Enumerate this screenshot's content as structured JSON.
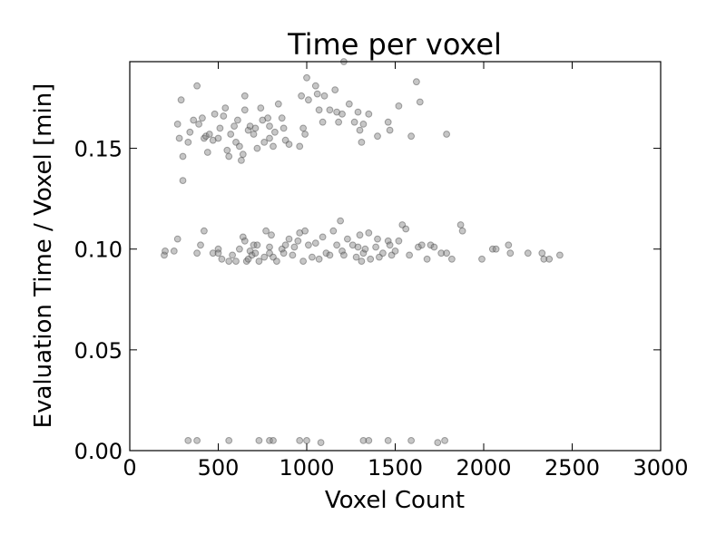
{
  "chart_data": {
    "type": "scatter",
    "title": "Time per voxel",
    "xlabel": "Voxel Count",
    "ylabel": "Evaluation Time / Voxel [min]",
    "xlim": [
      0,
      3000
    ],
    "ylim": [
      0,
      0.193
    ],
    "xticks": [
      0,
      500,
      1000,
      1500,
      2000,
      2500,
      3000
    ],
    "xtick_labels": [
      "0",
      "500",
      "1000",
      "1500",
      "2000",
      "2500",
      "3000"
    ],
    "yticks": [
      0.0,
      0.05,
      0.1,
      0.15
    ],
    "ytick_labels": [
      "0.00",
      "0.05",
      "0.10",
      "0.15"
    ],
    "grid": false,
    "marker_color": "#808080",
    "points": [
      [
        330,
        0.005
      ],
      [
        380,
        0.005
      ],
      [
        560,
        0.005
      ],
      [
        730,
        0.005
      ],
      [
        790,
        0.005
      ],
      [
        810,
        0.005
      ],
      [
        960,
        0.005
      ],
      [
        1000,
        0.005
      ],
      [
        1080,
        0.004
      ],
      [
        1320,
        0.005
      ],
      [
        1350,
        0.005
      ],
      [
        1460,
        0.005
      ],
      [
        1590,
        0.005
      ],
      [
        1740,
        0.004
      ],
      [
        1780,
        0.005
      ],
      [
        195,
        0.097
      ],
      [
        200,
        0.099
      ],
      [
        250,
        0.099
      ],
      [
        270,
        0.105
      ],
      [
        380,
        0.098
      ],
      [
        400,
        0.102
      ],
      [
        420,
        0.109
      ],
      [
        470,
        0.098
      ],
      [
        500,
        0.1
      ],
      [
        500,
        0.098
      ],
      [
        520,
        0.095
      ],
      [
        560,
        0.094
      ],
      [
        580,
        0.097
      ],
      [
        600,
        0.094
      ],
      [
        620,
        0.1
      ],
      [
        640,
        0.106
      ],
      [
        650,
        0.104
      ],
      [
        660,
        0.094
      ],
      [
        670,
        0.095
      ],
      [
        680,
        0.099
      ],
      [
        690,
        0.097
      ],
      [
        700,
        0.102
      ],
      [
        710,
        0.098
      ],
      [
        720,
        0.102
      ],
      [
        730,
        0.094
      ],
      [
        760,
        0.096
      ],
      [
        770,
        0.109
      ],
      [
        790,
        0.101
      ],
      [
        790,
        0.098
      ],
      [
        800,
        0.107
      ],
      [
        810,
        0.096
      ],
      [
        830,
        0.094
      ],
      [
        860,
        0.1
      ],
      [
        870,
        0.098
      ],
      [
        880,
        0.102
      ],
      [
        900,
        0.105
      ],
      [
        920,
        0.097
      ],
      [
        930,
        0.101
      ],
      [
        950,
        0.104
      ],
      [
        960,
        0.108
      ],
      [
        980,
        0.094
      ],
      [
        990,
        0.109
      ],
      [
        1010,
        0.102
      ],
      [
        1030,
        0.096
      ],
      [
        1050,
        0.103
      ],
      [
        1070,
        0.095
      ],
      [
        1090,
        0.106
      ],
      [
        1110,
        0.098
      ],
      [
        1130,
        0.097
      ],
      [
        1150,
        0.109
      ],
      [
        1170,
        0.102
      ],
      [
        1190,
        0.114
      ],
      [
        1200,
        0.099
      ],
      [
        1210,
        0.097
      ],
      [
        1230,
        0.105
      ],
      [
        1260,
        0.102
      ],
      [
        1280,
        0.096
      ],
      [
        1290,
        0.101
      ],
      [
        1300,
        0.107
      ],
      [
        1310,
        0.094
      ],
      [
        1320,
        0.098
      ],
      [
        1330,
        0.1
      ],
      [
        1350,
        0.108
      ],
      [
        1360,
        0.095
      ],
      [
        1390,
        0.101
      ],
      [
        1400,
        0.105
      ],
      [
        1410,
        0.096
      ],
      [
        1430,
        0.098
      ],
      [
        1460,
        0.104
      ],
      [
        1470,
        0.102
      ],
      [
        1480,
        0.097
      ],
      [
        1500,
        0.099
      ],
      [
        1520,
        0.104
      ],
      [
        1540,
        0.112
      ],
      [
        1560,
        0.11
      ],
      [
        1580,
        0.097
      ],
      [
        1630,
        0.101
      ],
      [
        1650,
        0.102
      ],
      [
        1680,
        0.095
      ],
      [
        1700,
        0.102
      ],
      [
        1720,
        0.101
      ],
      [
        1760,
        0.098
      ],
      [
        1790,
        0.098
      ],
      [
        1820,
        0.095
      ],
      [
        1870,
        0.112
      ],
      [
        1880,
        0.109
      ],
      [
        1990,
        0.095
      ],
      [
        2050,
        0.1
      ],
      [
        2070,
        0.1
      ],
      [
        2140,
        0.102
      ],
      [
        2150,
        0.098
      ],
      [
        2250,
        0.098
      ],
      [
        2330,
        0.098
      ],
      [
        2340,
        0.095
      ],
      [
        2370,
        0.095
      ],
      [
        2430,
        0.097
      ],
      [
        270,
        0.162
      ],
      [
        280,
        0.155
      ],
      [
        290,
        0.174
      ],
      [
        300,
        0.146
      ],
      [
        300,
        0.134
      ],
      [
        330,
        0.153
      ],
      [
        340,
        0.158
      ],
      [
        360,
        0.164
      ],
      [
        380,
        0.181
      ],
      [
        390,
        0.162
      ],
      [
        410,
        0.165
      ],
      [
        420,
        0.155
      ],
      [
        430,
        0.156
      ],
      [
        440,
        0.148
      ],
      [
        450,
        0.157
      ],
      [
        470,
        0.154
      ],
      [
        480,
        0.167
      ],
      [
        500,
        0.155
      ],
      [
        510,
        0.16
      ],
      [
        530,
        0.166
      ],
      [
        540,
        0.17
      ],
      [
        550,
        0.149
      ],
      [
        560,
        0.146
      ],
      [
        570,
        0.157
      ],
      [
        590,
        0.161
      ],
      [
        600,
        0.153
      ],
      [
        610,
        0.164
      ],
      [
        620,
        0.151
      ],
      [
        630,
        0.144
      ],
      [
        640,
        0.147
      ],
      [
        650,
        0.176
      ],
      [
        650,
        0.169
      ],
      [
        670,
        0.159
      ],
      [
        680,
        0.161
      ],
      [
        700,
        0.157
      ],
      [
        710,
        0.16
      ],
      [
        720,
        0.15
      ],
      [
        740,
        0.17
      ],
      [
        750,
        0.164
      ],
      [
        760,
        0.153
      ],
      [
        780,
        0.165
      ],
      [
        790,
        0.161
      ],
      [
        790,
        0.155
      ],
      [
        810,
        0.151
      ],
      [
        820,
        0.158
      ],
      [
        840,
        0.172
      ],
      [
        860,
        0.165
      ],
      [
        870,
        0.16
      ],
      [
        880,
        0.154
      ],
      [
        900,
        0.152
      ],
      [
        960,
        0.151
      ],
      [
        970,
        0.176
      ],
      [
        980,
        0.16
      ],
      [
        990,
        0.157
      ],
      [
        1000,
        0.185
      ],
      [
        1010,
        0.174
      ],
      [
        1050,
        0.181
      ],
      [
        1060,
        0.177
      ],
      [
        1070,
        0.169
      ],
      [
        1090,
        0.163
      ],
      [
        1100,
        0.176
      ],
      [
        1130,
        0.169
      ],
      [
        1160,
        0.179
      ],
      [
        1170,
        0.168
      ],
      [
        1180,
        0.163
      ],
      [
        1200,
        0.167
      ],
      [
        1210,
        0.193
      ],
      [
        1240,
        0.172
      ],
      [
        1270,
        0.163
      ],
      [
        1290,
        0.168
      ],
      [
        1300,
        0.159
      ],
      [
        1310,
        0.153
      ],
      [
        1320,
        0.162
      ],
      [
        1350,
        0.167
      ],
      [
        1400,
        0.156
      ],
      [
        1460,
        0.163
      ],
      [
        1470,
        0.159
      ],
      [
        1520,
        0.171
      ],
      [
        1590,
        0.156
      ],
      [
        1620,
        0.183
      ],
      [
        1640,
        0.173
      ],
      [
        1790,
        0.157
      ]
    ]
  }
}
